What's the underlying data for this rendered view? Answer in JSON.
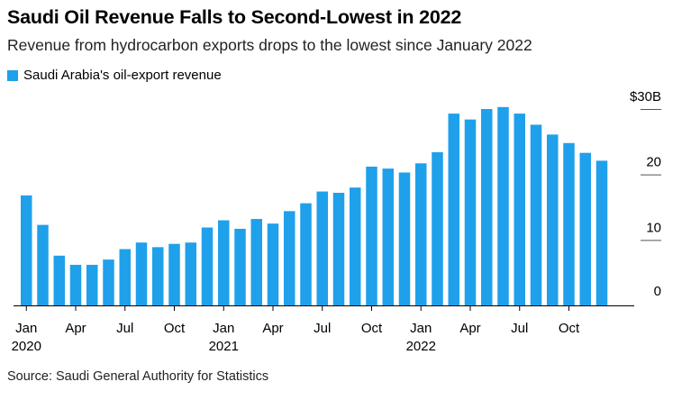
{
  "title": "Saudi Oil Revenue Falls to Second-Lowest in 2022",
  "subtitle": "Revenue from hydrocarbon exports drops to the lowest since January 2022",
  "source": "Source: Saudi General Authority for Statistics",
  "colors": {
    "bar": "#1fa0ea",
    "axis": "#000000",
    "tick": "#555555"
  },
  "chart_data": {
    "type": "bar",
    "title": "Saudi Oil Revenue Falls to Second-Lowest in 2022",
    "subtitle": "Revenue from hydrocarbon exports drops to the lowest since January 2022",
    "ylim": [
      0,
      30
    ],
    "y_ticks": [
      0,
      10,
      20,
      30
    ],
    "y_tick_labels": [
      "0",
      "10",
      "20",
      "$30B"
    ],
    "y_axis_position": "right",
    "legend_position": "top-left",
    "grid": false,
    "categories": [
      "2020-01",
      "2020-02",
      "2020-03",
      "2020-04",
      "2020-05",
      "2020-06",
      "2020-07",
      "2020-08",
      "2020-09",
      "2020-10",
      "2020-11",
      "2020-12",
      "2021-01",
      "2021-02",
      "2021-03",
      "2021-04",
      "2021-05",
      "2021-06",
      "2021-07",
      "2021-08",
      "2021-09",
      "2021-10",
      "2021-11",
      "2021-12",
      "2022-01",
      "2022-02",
      "2022-03",
      "2022-04",
      "2022-05",
      "2022-06",
      "2022-07",
      "2022-08",
      "2022-09",
      "2022-10",
      "2022-11",
      "2022-12"
    ],
    "x_tick_labels": [
      {
        "index": 0,
        "month": "Jan",
        "year": "2020"
      },
      {
        "index": 3,
        "month": "Apr",
        "year": ""
      },
      {
        "index": 6,
        "month": "Jul",
        "year": ""
      },
      {
        "index": 9,
        "month": "Oct",
        "year": ""
      },
      {
        "index": 12,
        "month": "Jan",
        "year": "2021"
      },
      {
        "index": 15,
        "month": "Apr",
        "year": ""
      },
      {
        "index": 18,
        "month": "Jul",
        "year": ""
      },
      {
        "index": 21,
        "month": "Oct",
        "year": ""
      },
      {
        "index": 24,
        "month": "Jan",
        "year": "2022"
      },
      {
        "index": 27,
        "month": "Apr",
        "year": ""
      },
      {
        "index": 30,
        "month": "Jul",
        "year": ""
      },
      {
        "index": 33,
        "month": "Oct",
        "year": ""
      }
    ],
    "series": [
      {
        "name": "Saudi Arabia's oil-export revenue",
        "values": [
          16.8,
          12.3,
          7.6,
          6.2,
          6.2,
          7.0,
          8.6,
          9.6,
          8.9,
          9.4,
          9.6,
          11.9,
          13.0,
          11.7,
          13.2,
          12.5,
          14.4,
          15.6,
          17.4,
          17.2,
          18.0,
          21.2,
          20.9,
          20.3,
          21.7,
          23.4,
          29.3,
          28.4,
          30.0,
          30.3,
          29.3,
          27.6,
          26.1,
          24.8,
          23.3,
          22.1
        ]
      }
    ]
  }
}
